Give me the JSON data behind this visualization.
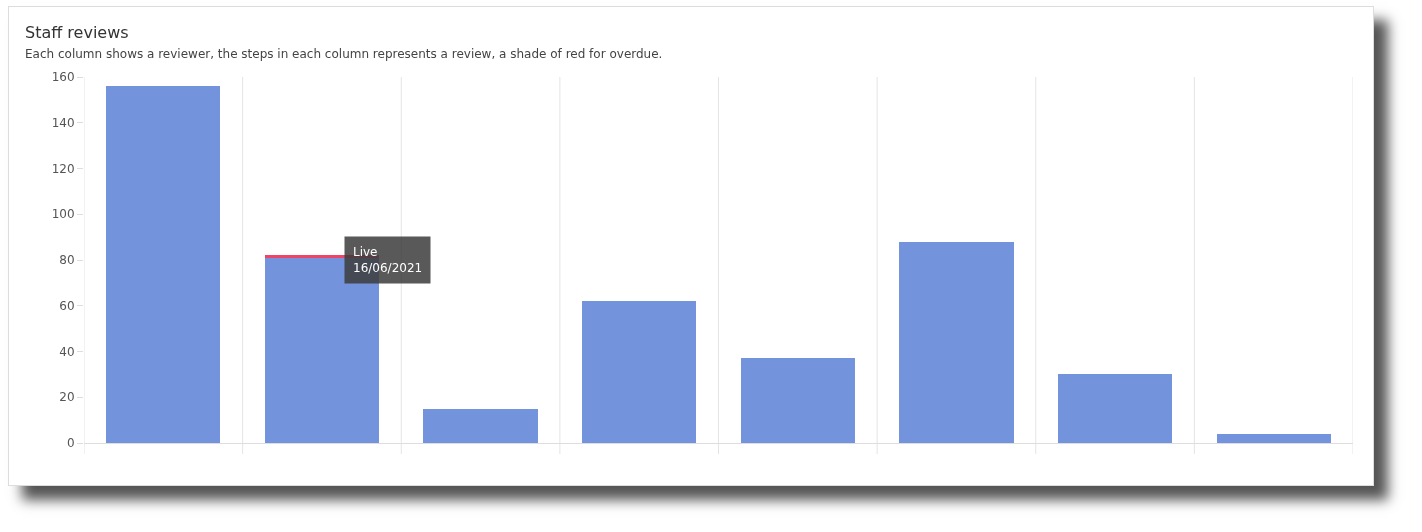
{
  "chart_data": {
    "type": "bar",
    "title": "Staff reviews",
    "subtitle": "Each column shows a reviewer, the steps in each column represents a review, a shade of red for overdue.",
    "categories": [
      null,
      null,
      null,
      null,
      null,
      null,
      null,
      null
    ],
    "series": [
      {
        "color": "#7394dc",
        "values": [
          156,
          81,
          15,
          62,
          37,
          88,
          30,
          4
        ]
      },
      {
        "color": "#ee4466",
        "values": [
          null,
          1,
          null,
          null,
          null,
          null,
          null,
          null
        ]
      }
    ],
    "stacked": true,
    "ylim": [
      0,
      160
    ],
    "yticks": [
      0,
      20,
      40,
      60,
      80,
      100,
      120,
      140,
      160
    ],
    "grid": "x",
    "annotations": [
      "Live\n16/06/2021"
    ]
  }
}
